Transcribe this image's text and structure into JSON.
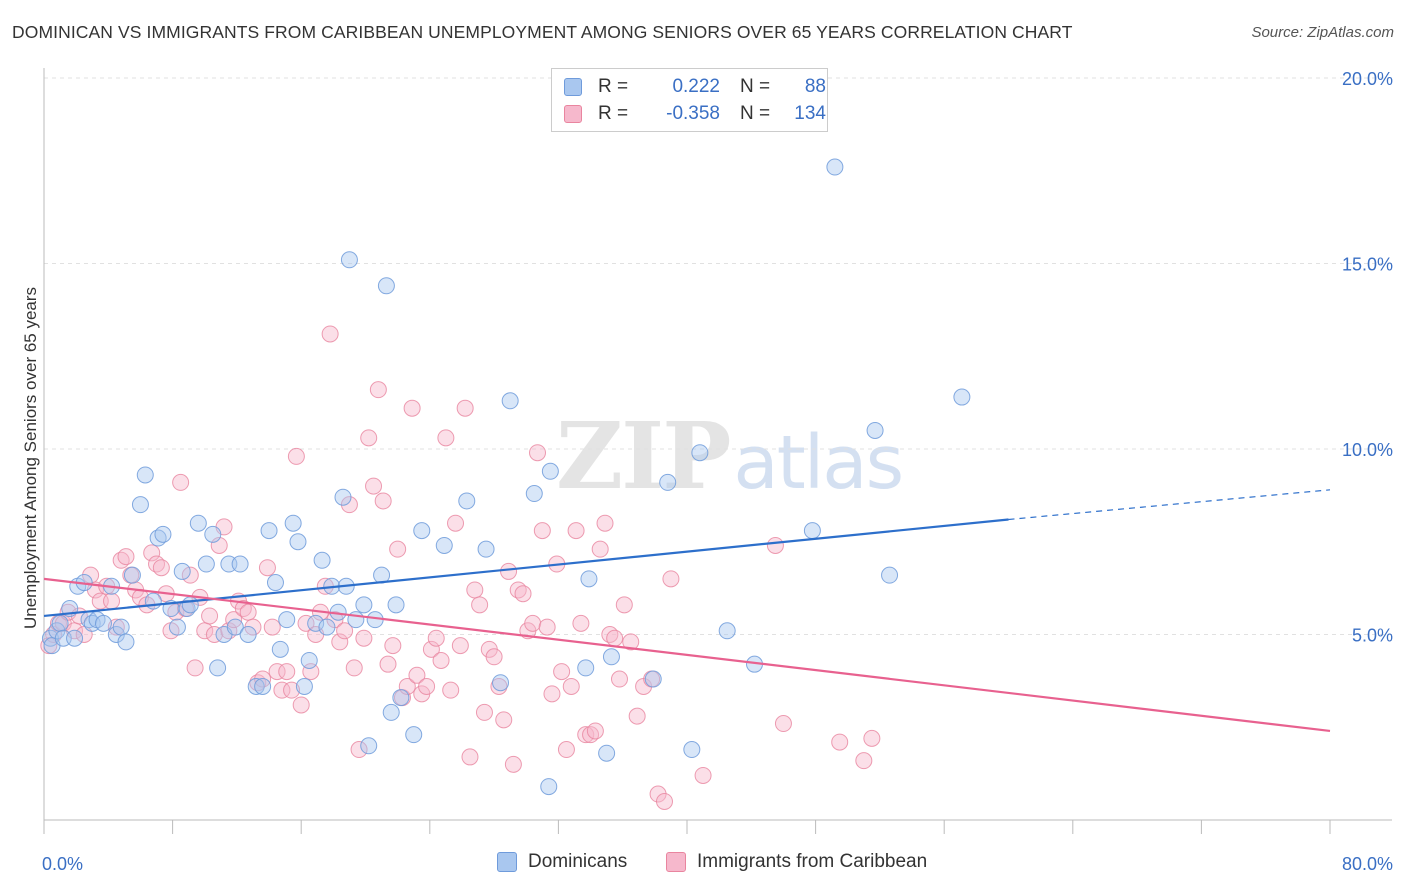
{
  "title": "DOMINICAN VS IMMIGRANTS FROM CARIBBEAN UNEMPLOYMENT AMONG SENIORS OVER 65 YEARS CORRELATION CHART",
  "source": "Source: ZipAtlas.com",
  "watermark": {
    "zip": "ZIP",
    "atlas": "atlas"
  },
  "legend_top": {
    "rows": [
      {
        "r_label": "R =",
        "r_value": "0.222",
        "n_label": "N =",
        "n_value": "88",
        "color": "#a9c7ef"
      },
      {
        "r_label": "R =",
        "r_value": "-0.358",
        "n_label": "N =",
        "n_value": "134",
        "color": "#f6b8cc"
      }
    ]
  },
  "bottom_legend": [
    {
      "label": "Dominicans",
      "color": "#a9c7ef"
    },
    {
      "label": "Immigrants from Caribbean",
      "color": "#f6b8cc"
    }
  ],
  "colors": {
    "blue_fill": "#a9c7ef",
    "blue_stroke": "#6f9bdb",
    "blue_line": "#2d6fcb",
    "pink_fill": "#f6b8cc",
    "pink_stroke": "#e9859f",
    "pink_line": "#e8618f",
    "tick_text": "#3a6fc4",
    "grid": "#e1e1e1",
    "axis": "#bbbbbb"
  },
  "chart_data": {
    "type": "scatter",
    "title": "DOMINICAN VS IMMIGRANTS FROM CARIBBEAN UNEMPLOYMENT AMONG SENIORS OVER 65 YEARS CORRELATION CHART",
    "xlabel": "",
    "ylabel": "Unemployment Among Seniors over 65 years",
    "xlim": [
      0,
      80
    ],
    "ylim": [
      0,
      20
    ],
    "x_tick_labels": [
      {
        "value": 0,
        "label": "0.0%"
      },
      {
        "value": 80,
        "label": "80.0%"
      }
    ],
    "y_tick_labels": [
      {
        "value": 5,
        "label": "5.0%"
      },
      {
        "value": 10,
        "label": "10.0%"
      },
      {
        "value": 15,
        "label": "15.0%"
      },
      {
        "value": 20,
        "label": "20.0%"
      }
    ],
    "x_minor_ticks": [
      0,
      8,
      16,
      24,
      32,
      40,
      48,
      56,
      64,
      72,
      80
    ],
    "grid": true,
    "legend_position": "top-center",
    "series": [
      {
        "name": "Dominicans",
        "R": 0.222,
        "N": 88,
        "trend": {
          "x": [
            0,
            60
          ],
          "y": [
            5.5,
            8.1
          ],
          "dashed_to": {
            "x": 80,
            "y": 8.9
          }
        },
        "points": [
          [
            0.4,
            4.9
          ],
          [
            0.5,
            4.7
          ],
          [
            0.8,
            5.1
          ],
          [
            1.0,
            5.3
          ],
          [
            1.2,
            4.9
          ],
          [
            1.6,
            5.7
          ],
          [
            1.9,
            4.9
          ],
          [
            2.1,
            6.3
          ],
          [
            2.5,
            6.4
          ],
          [
            2.8,
            5.4
          ],
          [
            3.0,
            5.3
          ],
          [
            3.3,
            5.4
          ],
          [
            3.7,
            5.3
          ],
          [
            4.2,
            6.3
          ],
          [
            4.5,
            5.0
          ],
          [
            4.8,
            5.2
          ],
          [
            5.1,
            4.8
          ],
          [
            5.5,
            6.6
          ],
          [
            6.0,
            8.5
          ],
          [
            6.3,
            9.3
          ],
          [
            6.8,
            5.9
          ],
          [
            7.1,
            7.6
          ],
          [
            7.4,
            7.7
          ],
          [
            7.9,
            5.7
          ],
          [
            8.3,
            5.2
          ],
          [
            8.6,
            6.7
          ],
          [
            8.9,
            5.7
          ],
          [
            9.1,
            5.8
          ],
          [
            9.6,
            8.0
          ],
          [
            10.1,
            6.9
          ],
          [
            10.5,
            7.7
          ],
          [
            10.8,
            4.1
          ],
          [
            11.2,
            5.0
          ],
          [
            11.5,
            6.9
          ],
          [
            11.9,
            5.2
          ],
          [
            12.2,
            6.9
          ],
          [
            12.7,
            5.0
          ],
          [
            13.2,
            3.6
          ],
          [
            13.6,
            3.6
          ],
          [
            14.0,
            7.8
          ],
          [
            14.4,
            6.4
          ],
          [
            14.7,
            4.6
          ],
          [
            15.1,
            5.4
          ],
          [
            15.5,
            8.0
          ],
          [
            15.8,
            7.5
          ],
          [
            16.2,
            3.6
          ],
          [
            16.5,
            4.3
          ],
          [
            16.9,
            5.3
          ],
          [
            17.3,
            7.0
          ],
          [
            17.6,
            5.2
          ],
          [
            17.9,
            6.3
          ],
          [
            18.3,
            5.6
          ],
          [
            18.6,
            8.7
          ],
          [
            18.8,
            6.3
          ],
          [
            19.0,
            15.1
          ],
          [
            19.4,
            5.4
          ],
          [
            19.9,
            5.8
          ],
          [
            20.2,
            2.0
          ],
          [
            20.6,
            5.4
          ],
          [
            21.0,
            6.6
          ],
          [
            21.3,
            14.4
          ],
          [
            21.6,
            2.9
          ],
          [
            21.9,
            5.8
          ],
          [
            22.2,
            3.3
          ],
          [
            23.0,
            2.3
          ],
          [
            23.5,
            7.8
          ],
          [
            24.9,
            7.4
          ],
          [
            26.3,
            8.6
          ],
          [
            27.5,
            7.3
          ],
          [
            28.4,
            3.7
          ],
          [
            29.0,
            11.3
          ],
          [
            30.5,
            8.8
          ],
          [
            31.5,
            9.4
          ],
          [
            33.7,
            4.1
          ],
          [
            33.9,
            6.5
          ],
          [
            35.0,
            1.8
          ],
          [
            35.3,
            4.4
          ],
          [
            37.9,
            3.8
          ],
          [
            38.8,
            9.1
          ],
          [
            40.3,
            1.9
          ],
          [
            40.8,
            9.9
          ],
          [
            42.5,
            5.1
          ],
          [
            44.2,
            4.2
          ],
          [
            47.8,
            7.8
          ],
          [
            49.2,
            17.6
          ],
          [
            51.7,
            10.5
          ],
          [
            52.6,
            6.6
          ],
          [
            57.1,
            11.4
          ],
          [
            31.4,
            0.9
          ]
        ]
      },
      {
        "name": "Immigrants from Caribbean",
        "R": -0.358,
        "N": 134,
        "trend": {
          "x": [
            0,
            80
          ],
          "y": [
            6.5,
            2.4
          ]
        },
        "points": [
          [
            0.3,
            4.7
          ],
          [
            0.6,
            5.0
          ],
          [
            0.9,
            5.3
          ],
          [
            1.2,
            5.3
          ],
          [
            1.5,
            5.6
          ],
          [
            1.9,
            5.1
          ],
          [
            2.2,
            5.5
          ],
          [
            2.5,
            5.0
          ],
          [
            2.9,
            6.6
          ],
          [
            3.2,
            6.2
          ],
          [
            3.5,
            5.9
          ],
          [
            3.9,
            6.3
          ],
          [
            4.2,
            5.9
          ],
          [
            4.5,
            5.2
          ],
          [
            4.8,
            7.0
          ],
          [
            5.1,
            7.1
          ],
          [
            5.4,
            6.6
          ],
          [
            5.7,
            6.2
          ],
          [
            6.0,
            6.0
          ],
          [
            6.4,
            5.8
          ],
          [
            6.7,
            7.2
          ],
          [
            7.0,
            6.9
          ],
          [
            7.3,
            6.8
          ],
          [
            7.6,
            6.1
          ],
          [
            7.9,
            5.1
          ],
          [
            8.2,
            5.6
          ],
          [
            8.5,
            9.1
          ],
          [
            8.8,
            5.7
          ],
          [
            9.1,
            6.6
          ],
          [
            9.4,
            4.1
          ],
          [
            9.7,
            6.0
          ],
          [
            10.0,
            5.1
          ],
          [
            10.3,
            5.5
          ],
          [
            10.6,
            5.0
          ],
          [
            10.9,
            7.4
          ],
          [
            11.2,
            7.9
          ],
          [
            11.5,
            5.1
          ],
          [
            11.8,
            5.4
          ],
          [
            12.1,
            5.9
          ],
          [
            12.4,
            5.7
          ],
          [
            12.7,
            5.6
          ],
          [
            13.0,
            5.2
          ],
          [
            13.3,
            3.7
          ],
          [
            13.6,
            3.8
          ],
          [
            13.9,
            6.8
          ],
          [
            14.2,
            5.2
          ],
          [
            14.5,
            4.0
          ],
          [
            14.8,
            3.5
          ],
          [
            15.1,
            4.0
          ],
          [
            15.4,
            3.5
          ],
          [
            15.7,
            9.8
          ],
          [
            16.0,
            3.1
          ],
          [
            16.3,
            5.3
          ],
          [
            16.6,
            4.0
          ],
          [
            16.9,
            5.0
          ],
          [
            17.2,
            5.6
          ],
          [
            17.5,
            6.3
          ],
          [
            17.8,
            13.1
          ],
          [
            18.1,
            5.4
          ],
          [
            18.4,
            4.8
          ],
          [
            18.7,
            5.1
          ],
          [
            19.0,
            8.5
          ],
          [
            19.3,
            4.1
          ],
          [
            19.6,
            1.9
          ],
          [
            19.9,
            4.9
          ],
          [
            20.2,
            10.3
          ],
          [
            20.5,
            9.0
          ],
          [
            20.8,
            11.6
          ],
          [
            21.1,
            8.6
          ],
          [
            21.4,
            4.2
          ],
          [
            21.7,
            4.7
          ],
          [
            22.0,
            7.3
          ],
          [
            22.3,
            3.3
          ],
          [
            22.6,
            3.6
          ],
          [
            22.9,
            11.1
          ],
          [
            23.2,
            3.9
          ],
          [
            23.5,
            3.4
          ],
          [
            23.8,
            3.6
          ],
          [
            24.1,
            4.6
          ],
          [
            24.4,
            4.9
          ],
          [
            24.7,
            4.3
          ],
          [
            25.0,
            10.3
          ],
          [
            25.3,
            3.5
          ],
          [
            25.6,
            8.0
          ],
          [
            25.9,
            4.7
          ],
          [
            26.2,
            11.1
          ],
          [
            26.5,
            1.7
          ],
          [
            26.8,
            6.2
          ],
          [
            27.1,
            5.8
          ],
          [
            27.4,
            2.9
          ],
          [
            27.7,
            4.6
          ],
          [
            28.0,
            4.4
          ],
          [
            28.3,
            3.6
          ],
          [
            28.6,
            2.7
          ],
          [
            28.9,
            6.7
          ],
          [
            29.2,
            1.5
          ],
          [
            29.5,
            6.2
          ],
          [
            29.8,
            6.1
          ],
          [
            30.1,
            5.1
          ],
          [
            30.4,
            5.3
          ],
          [
            30.7,
            9.9
          ],
          [
            31.0,
            7.8
          ],
          [
            31.3,
            5.2
          ],
          [
            31.6,
            3.4
          ],
          [
            31.9,
            6.9
          ],
          [
            32.2,
            4.0
          ],
          [
            32.5,
            1.9
          ],
          [
            32.8,
            3.6
          ],
          [
            33.1,
            7.8
          ],
          [
            33.4,
            5.3
          ],
          [
            33.7,
            2.3
          ],
          [
            34.0,
            2.3
          ],
          [
            34.3,
            2.4
          ],
          [
            34.6,
            7.3
          ],
          [
            34.9,
            8.0
          ],
          [
            35.2,
            5.0
          ],
          [
            35.5,
            4.9
          ],
          [
            35.8,
            3.8
          ],
          [
            36.1,
            5.8
          ],
          [
            36.5,
            4.8
          ],
          [
            36.9,
            2.8
          ],
          [
            37.3,
            3.6
          ],
          [
            37.8,
            3.8
          ],
          [
            38.2,
            0.7
          ],
          [
            38.6,
            0.5
          ],
          [
            39.0,
            6.5
          ],
          [
            41.0,
            1.2
          ],
          [
            45.5,
            7.4
          ],
          [
            46.0,
            2.6
          ],
          [
            49.5,
            2.1
          ],
          [
            51.0,
            1.6
          ],
          [
            51.5,
            2.2
          ]
        ]
      }
    ]
  }
}
